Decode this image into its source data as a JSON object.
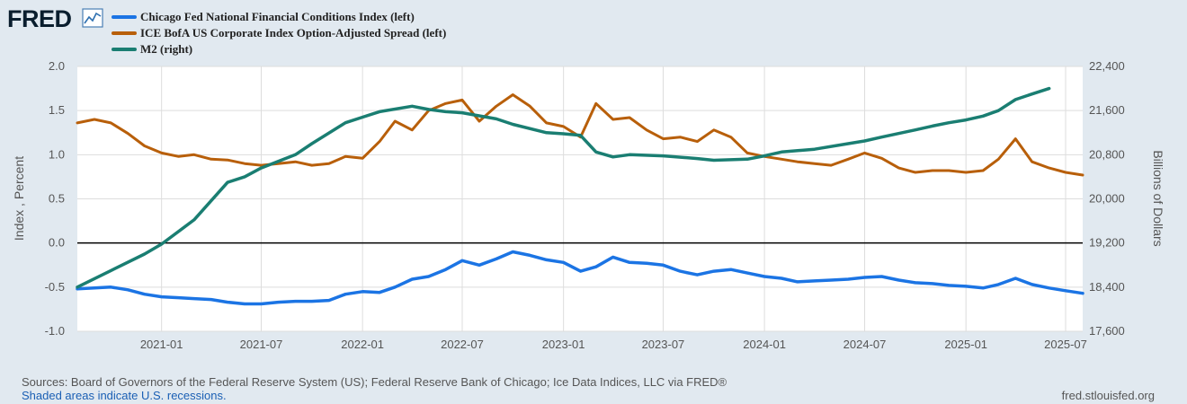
{
  "logo": {
    "text": "FRED"
  },
  "chart_data": {
    "type": "line",
    "series": [
      {
        "name": "Chicago Fed National Financial Conditions Index (left)",
        "axis": "left",
        "color": "#1b74e4",
        "points": [
          [
            "2020-08-01",
            -0.52
          ],
          [
            "2020-09-01",
            -0.51
          ],
          [
            "2020-10-01",
            -0.5
          ],
          [
            "2020-11-01",
            -0.53
          ],
          [
            "2020-12-01",
            -0.58
          ],
          [
            "2021-01-01",
            -0.61
          ],
          [
            "2021-02-01",
            -0.62
          ],
          [
            "2021-03-01",
            -0.63
          ],
          [
            "2021-04-01",
            -0.64
          ],
          [
            "2021-05-01",
            -0.67
          ],
          [
            "2021-06-01",
            -0.69
          ],
          [
            "2021-07-01",
            -0.69
          ],
          [
            "2021-08-01",
            -0.67
          ],
          [
            "2021-09-01",
            -0.66
          ],
          [
            "2021-10-01",
            -0.66
          ],
          [
            "2021-11-01",
            -0.65
          ],
          [
            "2021-12-01",
            -0.58
          ],
          [
            "2022-01-01",
            -0.55
          ],
          [
            "2022-02-01",
            -0.56
          ],
          [
            "2022-03-01",
            -0.5
          ],
          [
            "2022-04-01",
            -0.41
          ],
          [
            "2022-05-01",
            -0.38
          ],
          [
            "2022-06-01",
            -0.3
          ],
          [
            "2022-07-01",
            -0.2
          ],
          [
            "2022-08-01",
            -0.25
          ],
          [
            "2022-09-01",
            -0.18
          ],
          [
            "2022-10-01",
            -0.1
          ],
          [
            "2022-11-01",
            -0.14
          ],
          [
            "2022-12-01",
            -0.19
          ],
          [
            "2023-01-01",
            -0.22
          ],
          [
            "2023-02-01",
            -0.32
          ],
          [
            "2023-03-01",
            -0.27
          ],
          [
            "2023-04-01",
            -0.16
          ],
          [
            "2023-05-01",
            -0.22
          ],
          [
            "2023-06-01",
            -0.23
          ],
          [
            "2023-07-01",
            -0.25
          ],
          [
            "2023-08-01",
            -0.32
          ],
          [
            "2023-09-01",
            -0.36
          ],
          [
            "2023-10-01",
            -0.32
          ],
          [
            "2023-11-01",
            -0.3
          ],
          [
            "2023-12-01",
            -0.34
          ],
          [
            "2024-01-01",
            -0.38
          ],
          [
            "2024-02-01",
            -0.4
          ],
          [
            "2024-03-01",
            -0.44
          ],
          [
            "2024-04-01",
            -0.43
          ],
          [
            "2024-05-01",
            -0.42
          ],
          [
            "2024-06-01",
            -0.41
          ],
          [
            "2024-07-01",
            -0.39
          ],
          [
            "2024-08-01",
            -0.38
          ],
          [
            "2024-09-01",
            -0.42
          ],
          [
            "2024-10-01",
            -0.45
          ],
          [
            "2024-11-01",
            -0.46
          ],
          [
            "2024-12-01",
            -0.48
          ],
          [
            "2025-01-01",
            -0.49
          ],
          [
            "2025-02-01",
            -0.51
          ],
          [
            "2025-03-01",
            -0.47
          ],
          [
            "2025-04-01",
            -0.4
          ],
          [
            "2025-05-01",
            -0.47
          ],
          [
            "2025-06-01",
            -0.51
          ],
          [
            "2025-07-01",
            -0.54
          ],
          [
            "2025-08-01",
            -0.57
          ]
        ]
      },
      {
        "name": "ICE BofA US Corporate Index Option-Adjusted Spread (left)",
        "axis": "left",
        "color": "#b85f0a",
        "points": [
          [
            "2020-08-01",
            1.36
          ],
          [
            "2020-09-01",
            1.4
          ],
          [
            "2020-10-01",
            1.36
          ],
          [
            "2020-11-01",
            1.24
          ],
          [
            "2020-12-01",
            1.1
          ],
          [
            "2021-01-01",
            1.02
          ],
          [
            "2021-02-01",
            0.98
          ],
          [
            "2021-03-01",
            1.0
          ],
          [
            "2021-04-01",
            0.95
          ],
          [
            "2021-05-01",
            0.94
          ],
          [
            "2021-06-01",
            0.9
          ],
          [
            "2021-07-01",
            0.88
          ],
          [
            "2021-08-01",
            0.9
          ],
          [
            "2021-09-01",
            0.92
          ],
          [
            "2021-10-01",
            0.88
          ],
          [
            "2021-11-01",
            0.9
          ],
          [
            "2021-12-01",
            0.98
          ],
          [
            "2022-01-01",
            0.96
          ],
          [
            "2022-02-01",
            1.15
          ],
          [
            "2022-03-01",
            1.38
          ],
          [
            "2022-04-01",
            1.28
          ],
          [
            "2022-05-01",
            1.5
          ],
          [
            "2022-06-01",
            1.58
          ],
          [
            "2022-07-01",
            1.62
          ],
          [
            "2022-08-01",
            1.38
          ],
          [
            "2022-09-01",
            1.55
          ],
          [
            "2022-10-01",
            1.68
          ],
          [
            "2022-11-01",
            1.55
          ],
          [
            "2022-12-01",
            1.36
          ],
          [
            "2023-01-01",
            1.32
          ],
          [
            "2023-02-01",
            1.2
          ],
          [
            "2023-03-01",
            1.58
          ],
          [
            "2023-04-01",
            1.4
          ],
          [
            "2023-05-01",
            1.42
          ],
          [
            "2023-06-01",
            1.28
          ],
          [
            "2023-07-01",
            1.18
          ],
          [
            "2023-08-01",
            1.2
          ],
          [
            "2023-09-01",
            1.15
          ],
          [
            "2023-10-01",
            1.28
          ],
          [
            "2023-11-01",
            1.2
          ],
          [
            "2023-12-01",
            1.02
          ],
          [
            "2024-01-01",
            0.98
          ],
          [
            "2024-02-01",
            0.95
          ],
          [
            "2024-03-01",
            0.92
          ],
          [
            "2024-04-01",
            0.9
          ],
          [
            "2024-05-01",
            0.88
          ],
          [
            "2024-06-01",
            0.95
          ],
          [
            "2024-07-01",
            1.02
          ],
          [
            "2024-08-01",
            0.96
          ],
          [
            "2024-09-01",
            0.85
          ],
          [
            "2024-10-01",
            0.8
          ],
          [
            "2024-11-01",
            0.82
          ],
          [
            "2024-12-01",
            0.82
          ],
          [
            "2025-01-01",
            0.8
          ],
          [
            "2025-02-01",
            0.82
          ],
          [
            "2025-03-01",
            0.95
          ],
          [
            "2025-04-01",
            1.18
          ],
          [
            "2025-05-01",
            0.92
          ],
          [
            "2025-06-01",
            0.85
          ],
          [
            "2025-07-01",
            0.8
          ],
          [
            "2025-08-01",
            0.77
          ]
        ]
      },
      {
        "name": "M2 (right)",
        "axis": "right",
        "color": "#1a7e72",
        "points": [
          [
            "2020-08-01",
            18400
          ],
          [
            "2020-10-01",
            18700
          ],
          [
            "2020-12-01",
            19000
          ],
          [
            "2021-01-01",
            19180
          ],
          [
            "2021-03-01",
            19620
          ],
          [
            "2021-05-01",
            20300
          ],
          [
            "2021-06-01",
            20400
          ],
          [
            "2021-07-01",
            20560
          ],
          [
            "2021-09-01",
            20800
          ],
          [
            "2021-10-01",
            21000
          ],
          [
            "2021-12-01",
            21380
          ],
          [
            "2022-01-01",
            21480
          ],
          [
            "2022-02-01",
            21580
          ],
          [
            "2022-04-01",
            21680
          ],
          [
            "2022-05-01",
            21620
          ],
          [
            "2022-06-01",
            21580
          ],
          [
            "2022-07-01",
            21560
          ],
          [
            "2022-09-01",
            21450
          ],
          [
            "2022-10-01",
            21350
          ],
          [
            "2022-12-01",
            21200
          ],
          [
            "2023-01-01",
            21180
          ],
          [
            "2023-02-01",
            21150
          ],
          [
            "2023-03-01",
            20850
          ],
          [
            "2023-04-01",
            20760
          ],
          [
            "2023-05-01",
            20800
          ],
          [
            "2023-07-01",
            20780
          ],
          [
            "2023-09-01",
            20730
          ],
          [
            "2023-10-01",
            20700
          ],
          [
            "2023-12-01",
            20720
          ],
          [
            "2024-01-01",
            20780
          ],
          [
            "2024-02-01",
            20850
          ],
          [
            "2024-04-01",
            20900
          ],
          [
            "2024-06-01",
            21000
          ],
          [
            "2024-07-01",
            21050
          ],
          [
            "2024-08-01",
            21120
          ],
          [
            "2024-10-01",
            21250
          ],
          [
            "2024-11-01",
            21320
          ],
          [
            "2024-12-01",
            21380
          ],
          [
            "2025-01-01",
            21430
          ],
          [
            "2025-02-01",
            21500
          ],
          [
            "2025-03-01",
            21600
          ],
          [
            "2025-04-01",
            21800
          ],
          [
            "2025-05-01",
            21900
          ],
          [
            "2025-06-01",
            22000
          ]
        ]
      }
    ],
    "x_tick_labels": [
      "2021-01",
      "2021-07",
      "2022-01",
      "2022-07",
      "2023-01",
      "2023-07",
      "2024-01",
      "2024-07",
      "2025-01",
      "2025-07"
    ],
    "left_axis": {
      "title": "Index , Percent",
      "ticks": [
        "2.0",
        "1.5",
        "1.0",
        "0.5",
        "0.0",
        "-0.5",
        "-1.0"
      ],
      "range": [
        -1.0,
        2.0
      ]
    },
    "right_axis": {
      "title": "Billions of Dollars",
      "ticks": [
        "22,400",
        "21,600",
        "20,800",
        "20,000",
        "19,200",
        "18,400",
        "17,600"
      ],
      "range": [
        17600,
        22400
      ]
    },
    "x_range": [
      "2020-08-01",
      "2025-08-01"
    ],
    "grid": true,
    "zero_line": true
  },
  "footer": {
    "source": "Sources: Board of Governors of the Federal Reserve System (US); Federal Reserve Bank of Chicago; Ice Data Indices, LLC via FRED®",
    "recession_note": "Shaded areas indicate U.S. recessions.",
    "site": "fred.stlouisfed.org"
  }
}
